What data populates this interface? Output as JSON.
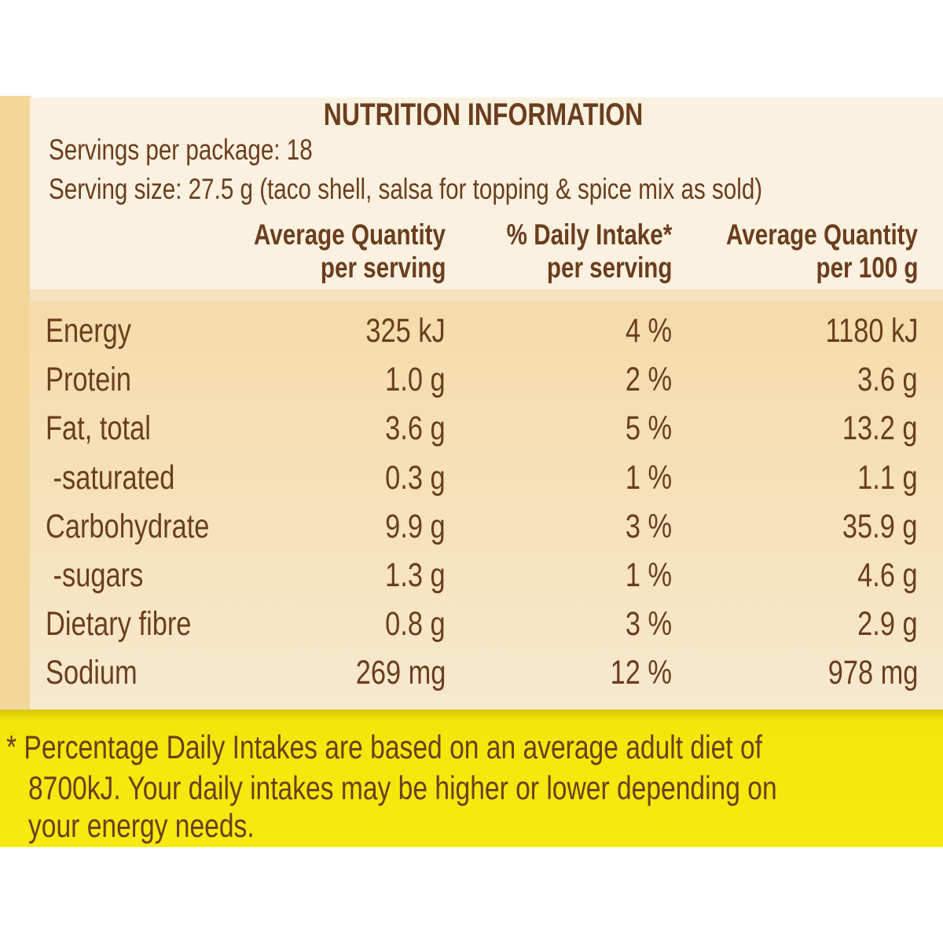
{
  "title": "NUTRITION INFORMATION",
  "servings_per_package": "Servings per package: 18",
  "serving_size": "Serving size: 27.5 g (taco shell, salsa for topping & spice mix as sold)",
  "columns": [
    {
      "line1": "Average Quantity",
      "line2": "per serving"
    },
    {
      "line1": "% Daily Intake*",
      "line2": "per serving"
    },
    {
      "line1": "Average Quantity",
      "line2": "per 100 g"
    }
  ],
  "rows": [
    {
      "name": "Energy",
      "per_serving": "325 kJ",
      "daily_intake": "4 %",
      "per_100g": "1180 kJ"
    },
    {
      "name": "Protein",
      "per_serving": "1.0 g",
      "daily_intake": "2 %",
      "per_100g": "3.6 g"
    },
    {
      "name": "Fat, total",
      "per_serving": "3.6 g",
      "daily_intake": "5 %",
      "per_100g": "13.2 g"
    },
    {
      "name": " -saturated",
      "per_serving": "0.3 g",
      "daily_intake": "1 %",
      "per_100g": "1.1 g"
    },
    {
      "name": "Carbohydrate",
      "per_serving": "9.9 g",
      "daily_intake": "3 %",
      "per_100g": "35.9 g"
    },
    {
      "name": " -sugars",
      "per_serving": "1.3 g",
      "daily_intake": "1 %",
      "per_100g": "4.6 g"
    },
    {
      "name": "Dietary fibre",
      "per_serving": "0.8 g",
      "daily_intake": "3 %",
      "per_100g": "2.9 g"
    },
    {
      "name": "Sodium",
      "per_serving": "269 mg",
      "daily_intake": "12 %",
      "per_100g": "978 mg"
    }
  ],
  "footnote": [
    "* Percentage Daily Intakes are based on an average adult diet of",
    "8700kJ. Your daily intakes may be higher or lower depending on",
    "your energy needs."
  ],
  "colors": {
    "text": "#6a3e1e",
    "panel": "#fbf1e0",
    "table": "#f6dcaa",
    "footer": "#f6ea10"
  }
}
